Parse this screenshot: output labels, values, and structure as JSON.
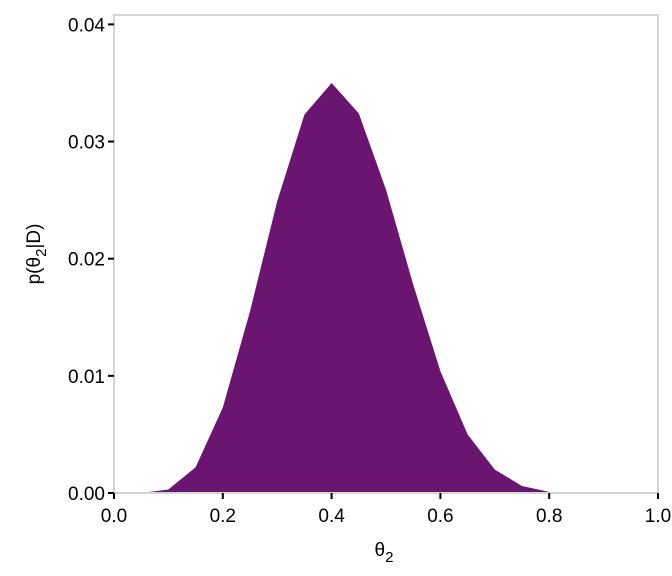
{
  "chart_data": {
    "type": "area",
    "x_label": {
      "base": "θ",
      "sub": "2"
    },
    "y_label": {
      "pre": "p(θ",
      "sub": "2",
      "post": "|D)"
    },
    "x": [
      0,
      0.05,
      0.1,
      0.15,
      0.2,
      0.25,
      0.3,
      0.35,
      0.4,
      0.45,
      0.5,
      0.55,
      0.6,
      0.65,
      0.7,
      0.75,
      0.8,
      0.85,
      0.9,
      0.95,
      1
    ],
    "series": [
      {
        "color": "#6a1570",
        "values": [
          0,
          0,
          0.0003,
          0.0022,
          0.0073,
          0.0155,
          0.0249,
          0.0323,
          0.035,
          0.0324,
          0.0259,
          0.0178,
          0.0104,
          0.005,
          0.002,
          0.0006,
          0.0001,
          0,
          0,
          0,
          0
        ]
      }
    ],
    "xlim": [
      0,
      1
    ],
    "ylim": [
      0,
      0.0408
    ],
    "xticks": [
      {
        "value": 0,
        "label": "0.0"
      },
      0.2,
      0.4,
      0.6,
      0.8,
      {
        "value": 1,
        "label": "1.0"
      }
    ],
    "yticks": [
      {
        "value": 0,
        "label": "0.00"
      },
      0.01,
      0.02,
      0.03,
      0.04
    ]
  }
}
